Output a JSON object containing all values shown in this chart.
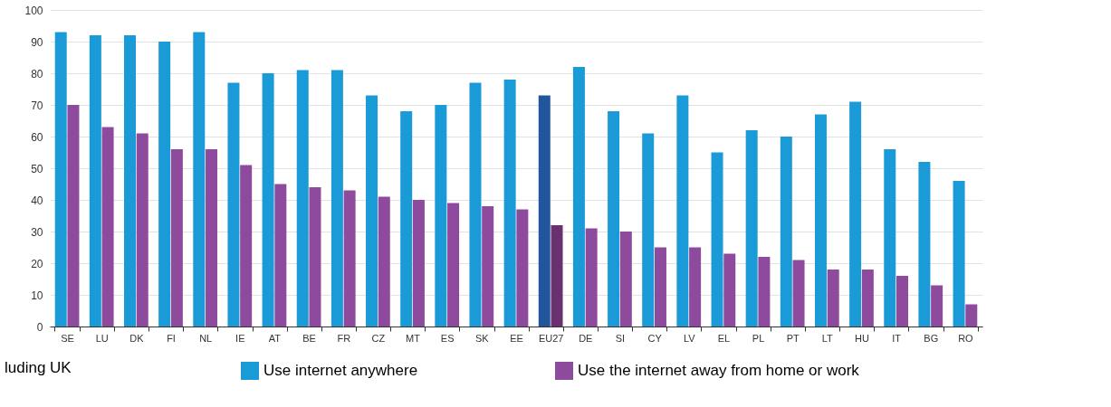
{
  "chart_data": {
    "type": "bar",
    "categories": [
      "SE",
      "LU",
      "DK",
      "FI",
      "NL",
      "IE",
      "AT",
      "BE",
      "FR",
      "CZ",
      "MT",
      "ES",
      "SK",
      "EE",
      "EU27",
      "DE",
      "SI",
      "CY",
      "LV",
      "EL",
      "PL",
      "PT",
      "LT",
      "HU",
      "IT",
      "BG",
      "RO"
    ],
    "series": [
      {
        "name": "Use internet anywhere",
        "color": "#1a9bd7",
        "colors": [
          "#1a9bd7",
          "#1a9bd7",
          "#1a9bd7",
          "#1a9bd7",
          "#1a9bd7",
          "#1a9bd7",
          "#1a9bd7",
          "#1a9bd7",
          "#1a9bd7",
          "#1a9bd7",
          "#1a9bd7",
          "#1a9bd7",
          "#1a9bd7",
          "#1a9bd7",
          "#22569c",
          "#1a9bd7",
          "#1a9bd7",
          "#1a9bd7",
          "#1a9bd7",
          "#1a9bd7",
          "#1a9bd7",
          "#1a9bd7",
          "#1a9bd7",
          "#1a9bd7",
          "#1a9bd7",
          "#1a9bd7",
          "#1a9bd7"
        ],
        "values": [
          93,
          92,
          92,
          90,
          93,
          77,
          80,
          81,
          81,
          73,
          68,
          70,
          77,
          78,
          73,
          82,
          68,
          61,
          73,
          55,
          62,
          60,
          67,
          71,
          56,
          52,
          46
        ]
      },
      {
        "name": "Use the internet away from home or work",
        "color": "#8e4a9c",
        "colors": [
          "#8e4a9c",
          "#8e4a9c",
          "#8e4a9c",
          "#8e4a9c",
          "#8e4a9c",
          "#8e4a9c",
          "#8e4a9c",
          "#8e4a9c",
          "#8e4a9c",
          "#8e4a9c",
          "#8e4a9c",
          "#8e4a9c",
          "#8e4a9c",
          "#8e4a9c",
          "#6b3070",
          "#8e4a9c",
          "#8e4a9c",
          "#8e4a9c",
          "#8e4a9c",
          "#8e4a9c",
          "#8e4a9c",
          "#8e4a9c",
          "#8e4a9c",
          "#8e4a9c",
          "#8e4a9c",
          "#8e4a9c",
          "#8e4a9c"
        ],
        "values": [
          70,
          63,
          61,
          56,
          56,
          51,
          45,
          44,
          43,
          41,
          40,
          39,
          38,
          37,
          32,
          31,
          30,
          25,
          25,
          23,
          22,
          21,
          18,
          18,
          16,
          13,
          7
        ]
      }
    ],
    "ylim": [
      0,
      100
    ],
    "yticks": [
      0,
      10,
      20,
      30,
      40,
      50,
      60,
      70,
      80,
      90,
      100
    ],
    "grid": "y",
    "legend": "bottom",
    "annotations": [
      "luding UK"
    ]
  }
}
